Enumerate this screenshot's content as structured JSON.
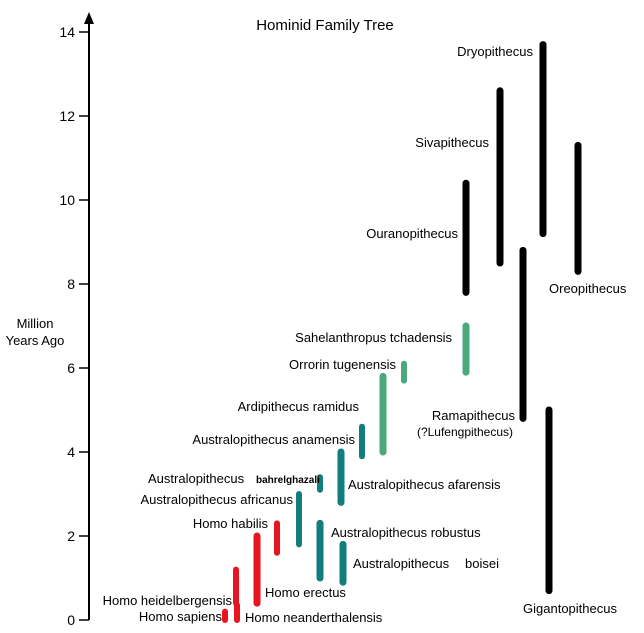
{
  "chart_data": {
    "type": "range-bar",
    "title": "Hominid Family Tree",
    "ylabel_line1": "Million",
    "ylabel_line2": "Years Ago",
    "ylim": [
      0,
      14
    ],
    "yticks": [
      "0",
      "2",
      "4",
      "6",
      "8",
      "10",
      "12",
      "14"
    ],
    "grid": false,
    "legend": "none",
    "group_colors": {
      "homo": "#e8141e",
      "australopith": "#127d7d",
      "early": "#4aa87a",
      "ape": "#000000"
    },
    "taxa": [
      {
        "name": "Homo sapiens",
        "group": "homo",
        "start": 0.2,
        "end": 0.0
      },
      {
        "name": "Homo neanderthalensis",
        "group": "homo",
        "start": 0.35,
        "end": 0.0
      },
      {
        "name": "Homo heidelbergensis",
        "group": "homo",
        "start": 1.2,
        "end": 0.4
      },
      {
        "name": "Homo erectus",
        "group": "homo",
        "start": 2.0,
        "end": 0.4
      },
      {
        "name": "Homo habilis",
        "group": "homo",
        "start": 2.3,
        "end": 1.6
      },
      {
        "name": "Australopithecus",
        "name_part2": "bahrelghazali",
        "group": "australopith",
        "start": 3.4,
        "end": 3.1
      },
      {
        "name": "Australopithecus africanus",
        "group": "australopith",
        "start": 3.0,
        "end": 1.8
      },
      {
        "name": "Australopithecus afarensis",
        "group": "australopith",
        "start": 4.0,
        "end": 2.8
      },
      {
        "name": "Australopithecus anamensis",
        "group": "australopith",
        "start": 4.6,
        "end": 3.9
      },
      {
        "name": "Australopithecus robustus",
        "group": "australopith",
        "start": 2.3,
        "end": 1.0
      },
      {
        "name": "Australopithecus",
        "name_part2": "boisei",
        "group": "australopith",
        "start": 1.8,
        "end": 0.9
      },
      {
        "name": "Ardipithecus ramidus",
        "group": "early",
        "start": 5.8,
        "end": 4.0
      },
      {
        "name": "Orrorin tugenensis",
        "group": "early",
        "start": 6.1,
        "end": 5.7
      },
      {
        "name": "Sahelanthropus tchadensis",
        "group": "early",
        "start": 7.0,
        "end": 5.9
      },
      {
        "name": "Ouranopithecus",
        "group": "ape",
        "start": 10.4,
        "end": 7.8
      },
      {
        "name": "Sivapithecus",
        "group": "ape",
        "start": 12.6,
        "end": 8.5
      },
      {
        "name": "Dryopithecus",
        "group": "ape",
        "start": 13.7,
        "end": 9.2
      },
      {
        "name": "Oreopithecus",
        "group": "ape",
        "start": 11.3,
        "end": 8.3
      },
      {
        "name": "Ramapithecus",
        "name_line2": "(?Lufengpithecus)",
        "group": "ape",
        "start": 8.8,
        "end": 4.8
      },
      {
        "name": "Gigantopithecus",
        "group": "ape",
        "start": 5.0,
        "end": 0.7
      }
    ]
  }
}
